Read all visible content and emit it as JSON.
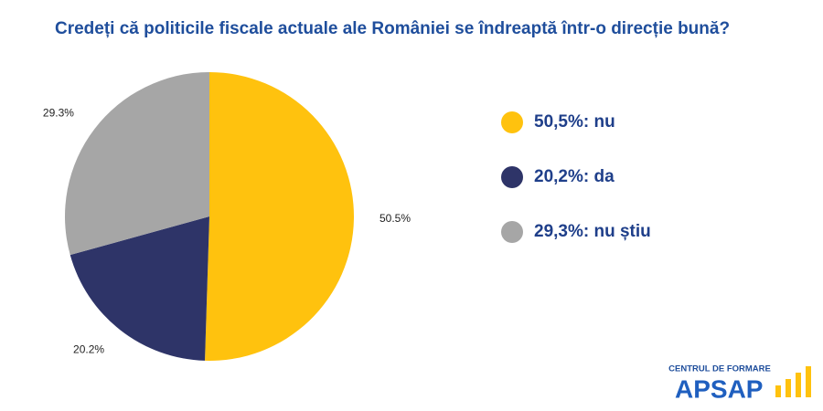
{
  "chart_data": {
    "type": "pie",
    "title": "Credeți că politicile fiscale actuale ale României se îndreaptă într-o direcție bună?",
    "categories": [
      "50,5%: nu",
      "20,2%: da",
      "29,3%: nu știu"
    ],
    "values": [
      50.5,
      20.2,
      29.3
    ],
    "value_labels": [
      "50.5%",
      "20.2%",
      "29.3%"
    ],
    "colors": [
      "#FFC20E",
      "#2E3468",
      "#A6A6A6"
    ]
  },
  "logo": {
    "subtitle": "CENTRUL DE FORMARE",
    "name": "APSAP"
  }
}
